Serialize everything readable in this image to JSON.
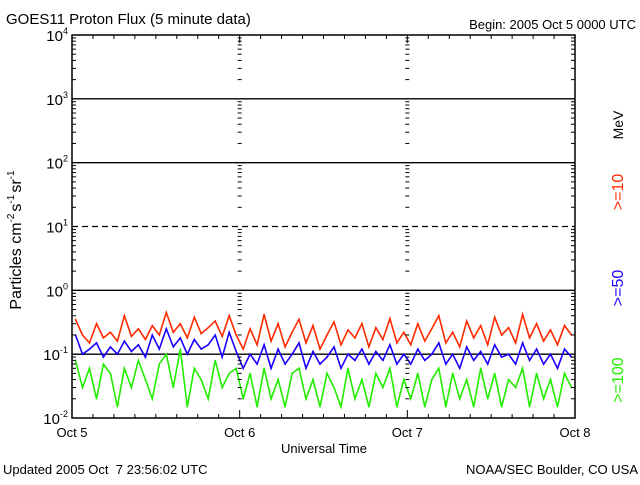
{
  "chart_data": {
    "type": "line",
    "title": "GOES11 Proton Flux (5 minute data)",
    "begin_label": "Begin: 2005 Oct 5 0000 UTC",
    "xlabel": "Universal Time",
    "ylabel": "Particles cm",
    "ylabel_parts": [
      "Particles cm",
      "-2",
      "s",
      "-1",
      "sr",
      "-1"
    ],
    "y_scale": "log",
    "ylim": [
      0.01,
      10000
    ],
    "y_ticks": [
      {
        "value": 10000,
        "base": "10",
        "exp": "4"
      },
      {
        "value": 1000,
        "base": "10",
        "exp": "3"
      },
      {
        "value": 100,
        "base": "10",
        "exp": "2"
      },
      {
        "value": 10,
        "base": "10",
        "exp": "1"
      },
      {
        "value": 1,
        "base": "10",
        "exp": "0"
      },
      {
        "value": 0.1,
        "base": "10",
        "exp": "-1"
      },
      {
        "value": 0.01,
        "base": "10",
        "exp": "-2"
      }
    ],
    "x_range_hours": [
      0,
      72
    ],
    "x_ticks": [
      {
        "hour": 0,
        "label": "Oct 5"
      },
      {
        "hour": 24,
        "label": "Oct 6"
      },
      {
        "hour": 48,
        "label": "Oct 7"
      },
      {
        "hour": 72,
        "label": "Oct 8"
      }
    ],
    "units_label": "MeV",
    "series": [
      {
        "name": ">=10",
        "color": "#ff2a00",
        "values": [
          0.35,
          0.2,
          0.15,
          0.3,
          0.18,
          0.22,
          0.16,
          0.4,
          0.19,
          0.25,
          0.17,
          0.28,
          0.2,
          0.45,
          0.22,
          0.3,
          0.18,
          0.38,
          0.21,
          0.26,
          0.33,
          0.19,
          0.4,
          0.2,
          0.12,
          0.25,
          0.14,
          0.42,
          0.16,
          0.3,
          0.13,
          0.22,
          0.35,
          0.15,
          0.28,
          0.12,
          0.2,
          0.32,
          0.14,
          0.24,
          0.18,
          0.3,
          0.13,
          0.26,
          0.17,
          0.36,
          0.15,
          0.22,
          0.14,
          0.3,
          0.16,
          0.25,
          0.4,
          0.15,
          0.22,
          0.13,
          0.33,
          0.18,
          0.28,
          0.14,
          0.38,
          0.2,
          0.26,
          0.15,
          0.42,
          0.18,
          0.3,
          0.16,
          0.24,
          0.14,
          0.28,
          0.2
        ]
      },
      {
        "name": ">=50",
        "color": "#1a00ff",
        "values": [
          0.2,
          0.1,
          0.12,
          0.15,
          0.09,
          0.13,
          0.1,
          0.16,
          0.11,
          0.14,
          0.09,
          0.2,
          0.12,
          0.25,
          0.13,
          0.18,
          0.1,
          0.17,
          0.12,
          0.14,
          0.2,
          0.09,
          0.22,
          0.11,
          0.06,
          0.1,
          0.07,
          0.14,
          0.06,
          0.12,
          0.07,
          0.1,
          0.15,
          0.06,
          0.11,
          0.07,
          0.09,
          0.13,
          0.06,
          0.1,
          0.08,
          0.12,
          0.07,
          0.11,
          0.08,
          0.14,
          0.07,
          0.1,
          0.07,
          0.12,
          0.08,
          0.1,
          0.15,
          0.07,
          0.1,
          0.06,
          0.13,
          0.08,
          0.11,
          0.07,
          0.14,
          0.09,
          0.1,
          0.07,
          0.15,
          0.08,
          0.12,
          0.07,
          0.1,
          0.06,
          0.12,
          0.09
        ]
      },
      {
        "name": ">=100",
        "color": "#22ee00",
        "values": [
          0.08,
          0.03,
          0.06,
          0.02,
          0.07,
          0.05,
          0.015,
          0.06,
          0.03,
          0.08,
          0.04,
          0.02,
          0.07,
          0.1,
          0.03,
          0.12,
          0.015,
          0.06,
          0.04,
          0.02,
          0.08,
          0.03,
          0.05,
          0.06,
          0.02,
          0.05,
          0.015,
          0.06,
          0.02,
          0.04,
          0.015,
          0.05,
          0.06,
          0.02,
          0.04,
          0.015,
          0.05,
          0.03,
          0.015,
          0.06,
          0.02,
          0.04,
          0.015,
          0.05,
          0.03,
          0.06,
          0.015,
          0.04,
          0.02,
          0.05,
          0.015,
          0.04,
          0.06,
          0.015,
          0.05,
          0.02,
          0.04,
          0.015,
          0.06,
          0.02,
          0.05,
          0.015,
          0.04,
          0.03,
          0.06,
          0.015,
          0.05,
          0.02,
          0.04,
          0.015,
          0.05,
          0.03
        ]
      }
    ],
    "solid_gridlines": [
      1000,
      100,
      1,
      0.1
    ],
    "dashed_gridlines": [
      10
    ]
  },
  "footer": {
    "updated": "Updated 2005 Oct  7 23:56:02 UTC",
    "credit": "NOAA/SEC Boulder, CO USA"
  }
}
